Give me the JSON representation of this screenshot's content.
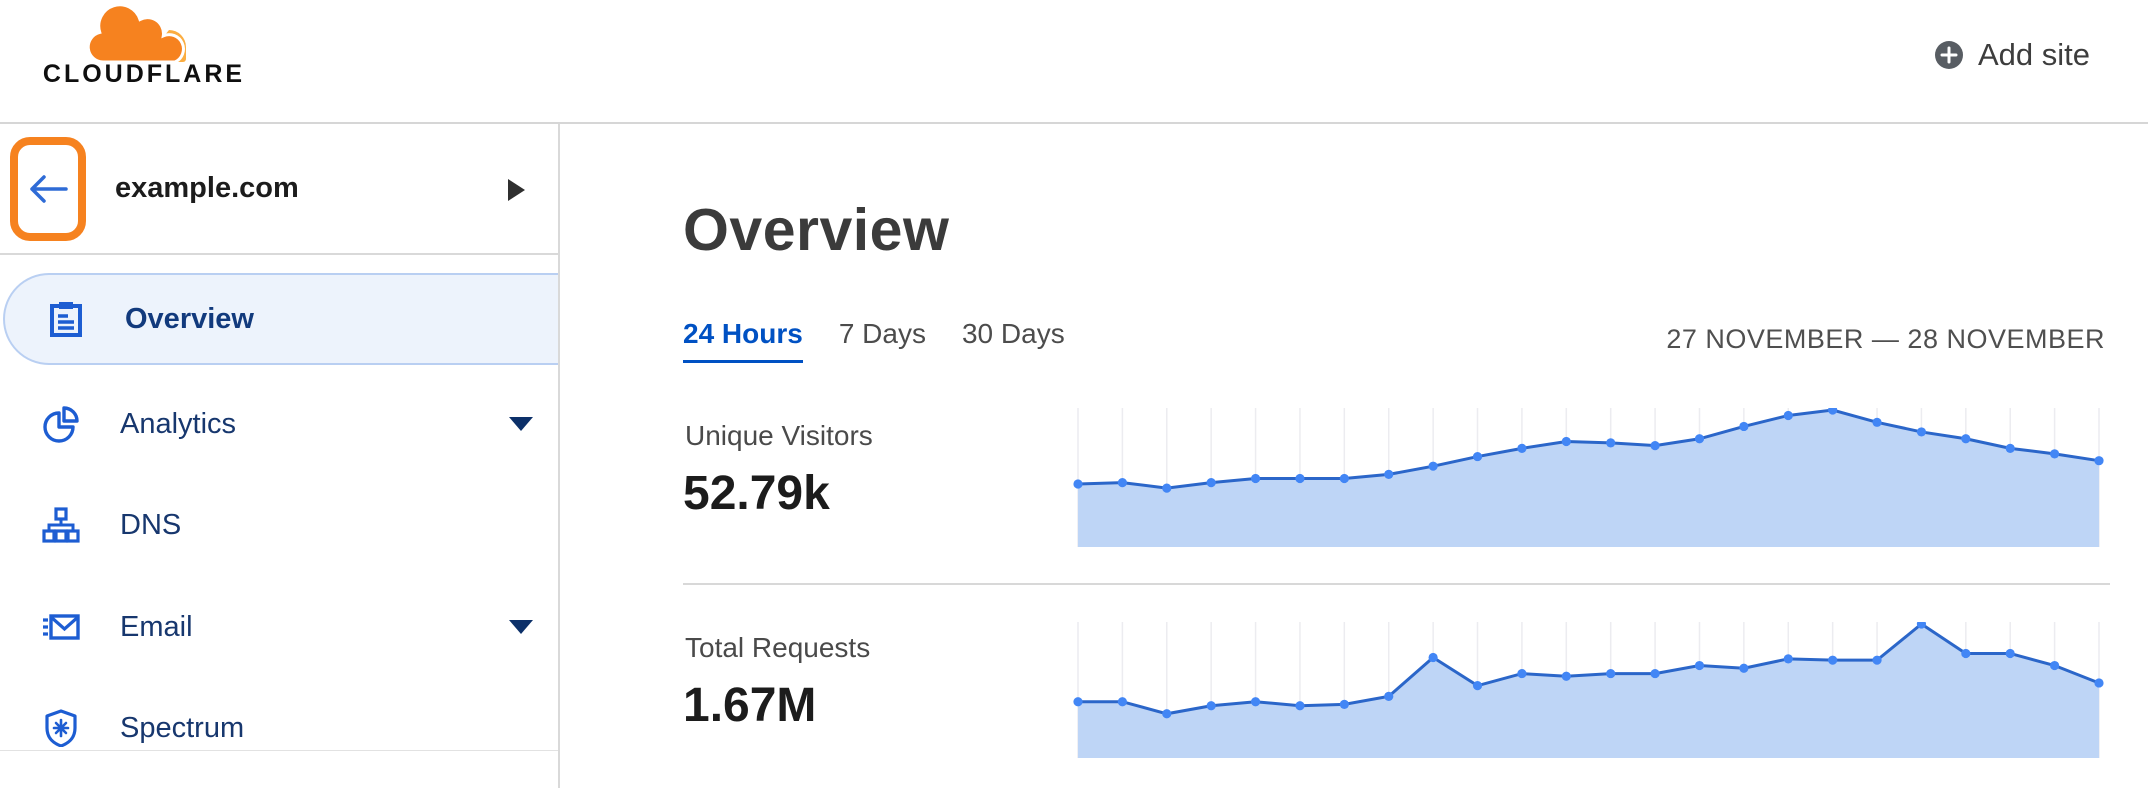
{
  "header": {
    "brand": "CLOUDFLARE",
    "add_site_label": "Add site"
  },
  "sidebar": {
    "site_name": "example.com",
    "items": [
      {
        "label": "Overview",
        "icon": "clipboard-icon",
        "selected": true,
        "expandable": false
      },
      {
        "label": "Analytics",
        "icon": "pie-chart-icon",
        "selected": false,
        "expandable": true
      },
      {
        "label": "DNS",
        "icon": "dns-tree-icon",
        "selected": false,
        "expandable": false
      },
      {
        "label": "Email",
        "icon": "email-icon",
        "selected": false,
        "expandable": true
      },
      {
        "label": "Spectrum",
        "icon": "shield-icon",
        "selected": false,
        "expandable": false
      }
    ]
  },
  "main": {
    "title": "Overview",
    "tabs": [
      {
        "label": "24 Hours",
        "active": true
      },
      {
        "label": "7 Days",
        "active": false
      },
      {
        "label": "30 Days",
        "active": false
      }
    ],
    "date_range": "27 NOVEMBER — 28 NOVEMBER",
    "metrics": [
      {
        "label": "Unique Visitors",
        "value": "52.79k"
      },
      {
        "label": "Total Requests",
        "value": "1.67M"
      }
    ]
  },
  "colors": {
    "brand_orange": "#f6821f",
    "brand_orange_light": "#fbad41",
    "link_blue": "#0051c3",
    "nav_icon_blue": "#1d5dd2",
    "nav_text": "#17376e",
    "selected_pill_bg": "#edf3fc",
    "selected_pill_border": "#b9cff2",
    "chart_line": "#2b66c9",
    "chart_dot": "#4286f5",
    "chart_fill": "#bed5f6",
    "gridline": "#ececf0",
    "divider": "#d8d8d8"
  },
  "chart_data": [
    {
      "type": "area",
      "title": "Unique Visitors",
      "headline_total": "52.79k",
      "x_description": "24 hourly points, 27 November — 28 November",
      "values_relative": [
        0.46,
        0.47,
        0.43,
        0.47,
        0.5,
        0.5,
        0.5,
        0.53,
        0.59,
        0.66,
        0.72,
        0.77,
        0.76,
        0.74,
        0.79,
        0.88,
        0.96,
        1.0,
        0.91,
        0.84,
        0.79,
        0.72,
        0.68,
        0.63
      ],
      "ylim": [
        0,
        1
      ],
      "grid": "vertical-only",
      "legend": "none"
    },
    {
      "type": "area",
      "title": "Total Requests",
      "headline_total": "1.67M",
      "x_description": "24 hourly points, 27 November — 28 November",
      "values_relative": [
        0.42,
        0.42,
        0.33,
        0.39,
        0.42,
        0.39,
        0.4,
        0.46,
        0.75,
        0.54,
        0.63,
        0.61,
        0.63,
        0.63,
        0.69,
        0.67,
        0.74,
        0.73,
        0.73,
        1.0,
        0.78,
        0.78,
        0.69,
        0.56
      ],
      "ylim": [
        0,
        1
      ],
      "grid": "vertical-only",
      "legend": "none"
    }
  ]
}
